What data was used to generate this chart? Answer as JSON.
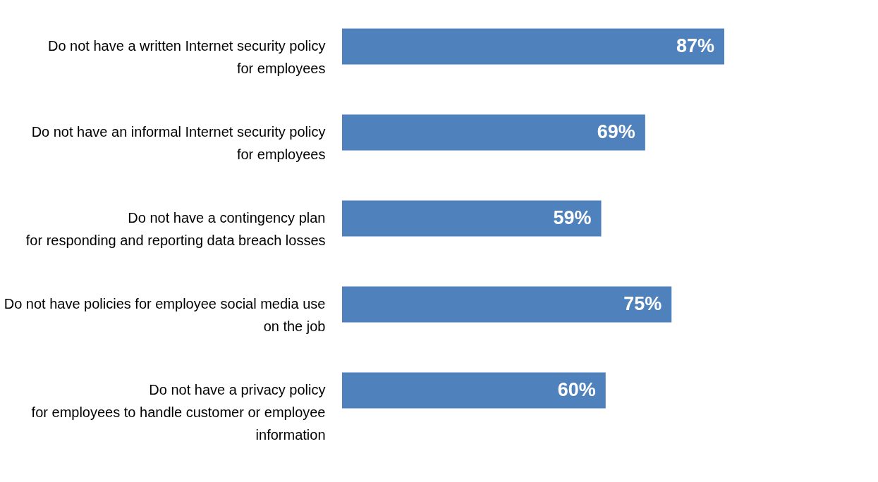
{
  "chart_data": {
    "type": "bar",
    "orientation": "horizontal",
    "categories": [
      "Do not have a written Internet security policy\nfor employees",
      "Do not have an informal Internet security policy\nfor employees",
      "Do not have a contingency plan\nfor responding and reporting data breach losses",
      "Do not have policies for employee social media use\non the job",
      "Do not have a privacy policy\nfor employees to handle customer or employee\ninformation"
    ],
    "values": [
      87,
      69,
      59,
      75,
      60
    ],
    "value_labels": [
      "87%",
      "69%",
      "59%",
      "75%",
      "60%"
    ],
    "color": "#4f81bd",
    "tick_labels": "y"
  }
}
